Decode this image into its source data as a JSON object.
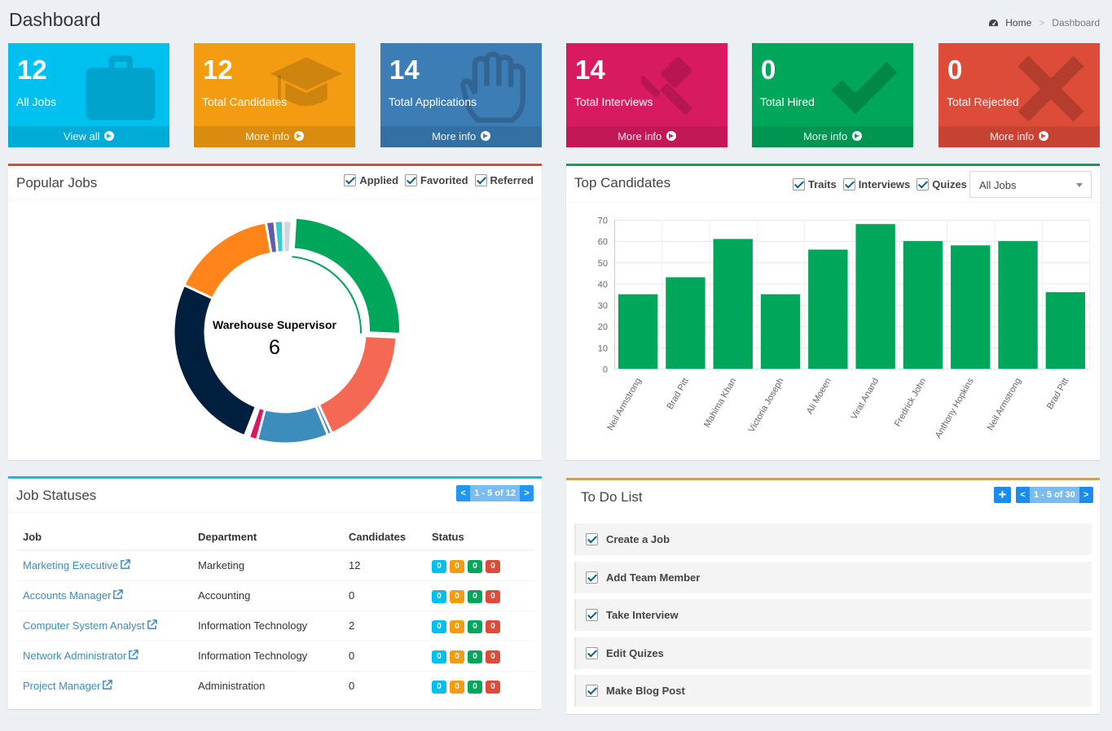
{
  "header": {
    "title": "Dashboard",
    "breadcrumb": {
      "home": "Home",
      "separator": ">",
      "current": "Dashboard"
    }
  },
  "stats": [
    {
      "value": "12",
      "label": "All Jobs",
      "link": "View all",
      "color": "#00c0ef",
      "icon": "briefcase-icon"
    },
    {
      "value": "12",
      "label": "Total Candidates",
      "link": "More info",
      "color": "#f39c12",
      "icon": "graduation-cap-icon"
    },
    {
      "value": "14",
      "label": "Total Applications",
      "link": "More info",
      "color": "#3c7db5",
      "icon": "hand-icon"
    },
    {
      "value": "14",
      "label": "Total Interviews",
      "link": "More info",
      "color": "#d81b60",
      "icon": "gavel-icon"
    },
    {
      "value": "0",
      "label": "Total Hired",
      "link": "More info",
      "color": "#00a65a",
      "icon": "check-icon"
    },
    {
      "value": "0",
      "label": "Total Rejected",
      "link": "More info",
      "color": "#dd4b39",
      "icon": "times-icon"
    }
  ],
  "popular_jobs": {
    "title": "Popular Jobs",
    "filters": [
      "Applied",
      "Favorited",
      "Referred"
    ],
    "center_label": "Warehouse Supervisor",
    "center_value": "6",
    "border_color": "#dd4b39"
  },
  "top_candidates": {
    "title": "Top Candidates",
    "filters": [
      "Traits",
      "Interviews",
      "Quizes"
    ],
    "select_value": "All Jobs",
    "border_color": "#00a65a"
  },
  "job_statuses": {
    "title": "Job Statuses",
    "pager": {
      "prev": "<",
      "info": "1 - 5 of 12",
      "next": ">"
    },
    "columns": [
      "Job",
      "Department",
      "Candidates",
      "Status"
    ],
    "rows": [
      {
        "job": "Marketing Executive",
        "department": "Marketing",
        "candidates": "12",
        "badges": [
          "0",
          "0",
          "0",
          "0"
        ]
      },
      {
        "job": "Accounts Manager",
        "department": "Accounting",
        "candidates": "0",
        "badges": [
          "0",
          "0",
          "0",
          "0"
        ]
      },
      {
        "job": "Computer System Analyst",
        "department": "Information Technology",
        "candidates": "2",
        "badges": [
          "0",
          "0",
          "0",
          "0"
        ]
      },
      {
        "job": "Network Administrator",
        "department": "Information Technology",
        "candidates": "0",
        "badges": [
          "0",
          "0",
          "0",
          "0"
        ]
      },
      {
        "job": "Project Manager",
        "department": "Administration",
        "candidates": "0",
        "badges": [
          "0",
          "0",
          "0",
          "0"
        ]
      }
    ],
    "badge_colors": [
      "#00c0ef",
      "#f39c12",
      "#00a65a",
      "#dd4b39"
    ],
    "border_color": "#00c0ef"
  },
  "todo": {
    "title": "To Do List",
    "add_label": "+",
    "pager": {
      "prev": "<",
      "info": "1 - 5 of 30",
      "next": ">"
    },
    "items": [
      "Create a Job",
      "Add Team Member",
      "Take Interview",
      "Edit Quizes",
      "Make Blog Post"
    ],
    "border_color": "#f39c12"
  },
  "chart_data": [
    {
      "type": "pie",
      "variant": "donut",
      "slices": [
        {
          "value": 6,
          "color": "#00a65a"
        },
        {
          "value": 4.2,
          "color": "#f56954"
        },
        {
          "value": 0.15,
          "color": "#3c8dbc"
        },
        {
          "value": 2.5,
          "color": "#3c8dbc"
        },
        {
          "value": 0.3,
          "color": "#d81b60"
        },
        {
          "value": 0.15,
          "color": "#ffffff"
        },
        {
          "value": 6.3,
          "color": "#001f3f"
        },
        {
          "value": 3.7,
          "color": "#ff851b"
        },
        {
          "value": 0.3,
          "color": "#605ca8"
        },
        {
          "value": 0.3,
          "color": "#39cccc"
        },
        {
          "value": 0.3,
          "color": "#d2d6de"
        }
      ],
      "active_slice": 0
    },
    {
      "type": "bar",
      "categories": [
        "Neil Armstrong",
        "Brad Pitt",
        "Mahima Khan",
        "Victoria Joseph",
        "Ali Moeen",
        "Virat Anand",
        "Fredrick John",
        "Anthony Hopkins",
        "Neil Armstrong",
        "Brad Pitt"
      ],
      "values": [
        35,
        43,
        61,
        35,
        56,
        68,
        60,
        58,
        60,
        36
      ],
      "ylim": [
        0,
        70
      ],
      "yticks": [
        "0",
        "10",
        "20",
        "30",
        "40",
        "50",
        "60",
        "70"
      ],
      "color": "#00a65a",
      "grid": true
    }
  ]
}
